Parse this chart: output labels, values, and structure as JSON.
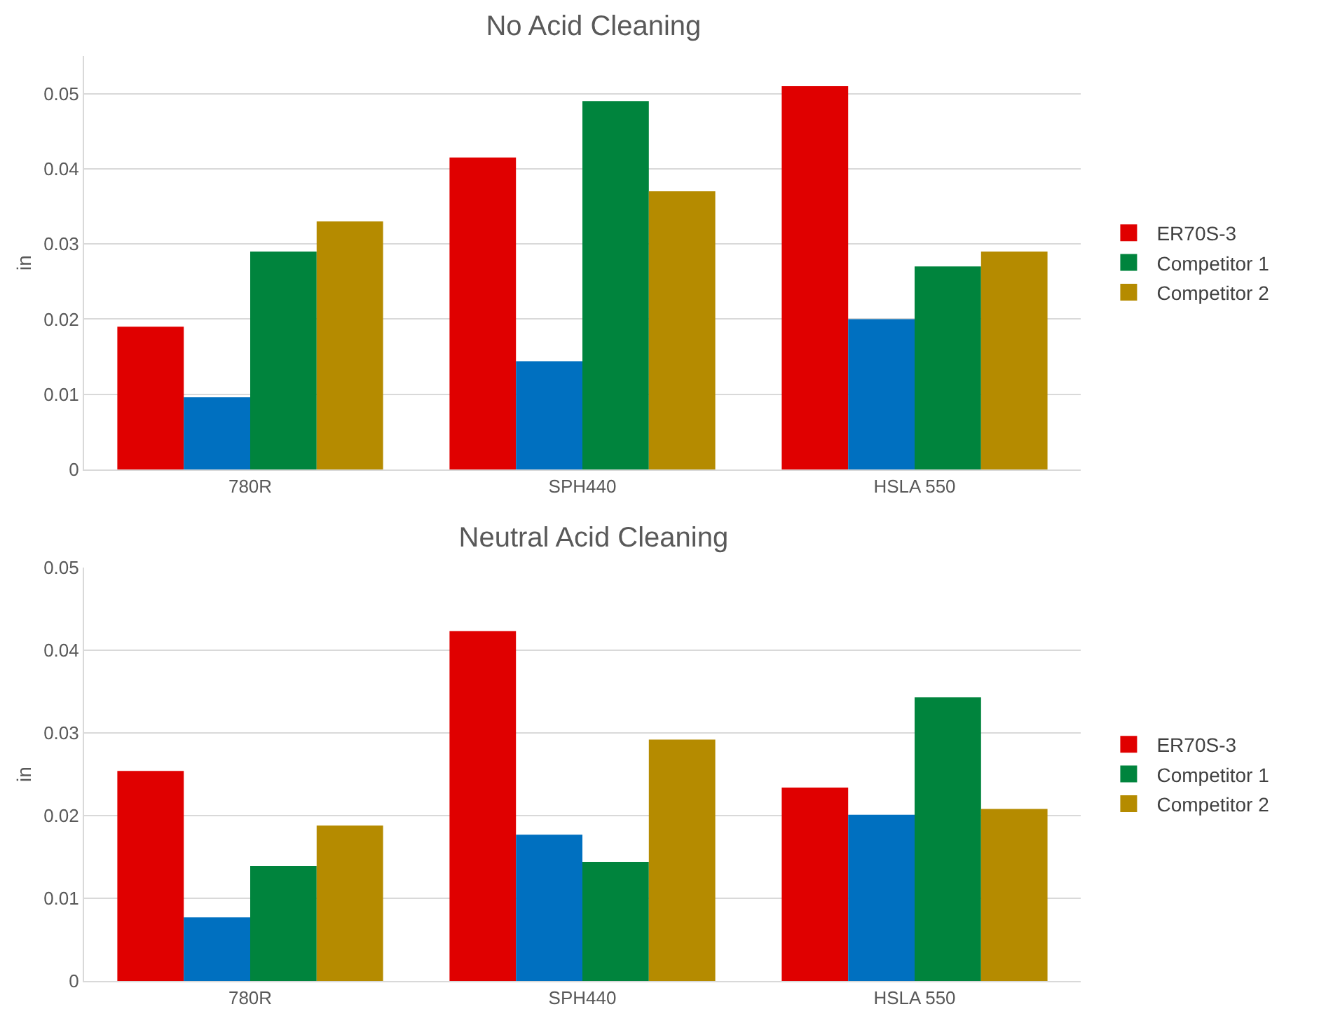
{
  "chart_data": [
    {
      "type": "bar",
      "title": "No Acid Cleaning",
      "ylabel": "in",
      "categories": [
        "780R",
        "SPH440",
        "HSLA 550"
      ],
      "series": [
        {
          "name": "ER70S-3",
          "color": "#e00000",
          "values": [
            0.019,
            0.0415,
            0.051
          ]
        },
        {
          "color": "#0070c0",
          "values": [
            0.0096,
            0.0144,
            0.02
          ]
        },
        {
          "name": "Competitor 1",
          "color": "#00843d",
          "values": [
            0.029,
            0.049,
            0.027
          ]
        },
        {
          "name": "Competitor 2",
          "color": "#b58b00",
          "values": [
            0.033,
            0.037,
            0.029
          ]
        }
      ],
      "ylim": [
        0,
        0.055
      ],
      "yticks": [
        0,
        0.01,
        0.02,
        0.03,
        0.04,
        0.05
      ],
      "grid": "y",
      "legend": "right"
    },
    {
      "type": "bar",
      "title": "Neutral Acid Cleaning",
      "ylabel": "in",
      "categories": [
        "780R",
        "SPH440",
        "HSLA 550"
      ],
      "series": [
        {
          "name": "ER70S-3",
          "color": "#e00000",
          "values": [
            0.0254,
            0.0423,
            0.0234
          ]
        },
        {
          "color": "#0070c0",
          "values": [
            0.0077,
            0.0177,
            0.0201
          ]
        },
        {
          "name": "Competitor 1",
          "color": "#00843d",
          "values": [
            0.0139,
            0.0144,
            0.0343
          ]
        },
        {
          "name": "Competitor 2",
          "color": "#b58b00",
          "values": [
            0.0188,
            0.0292,
            0.0208
          ]
        }
      ],
      "ylim": [
        0,
        0.05
      ],
      "yticks": [
        0,
        0.01,
        0.02,
        0.03,
        0.04,
        0.05
      ],
      "grid": "y",
      "legend": "right"
    }
  ]
}
